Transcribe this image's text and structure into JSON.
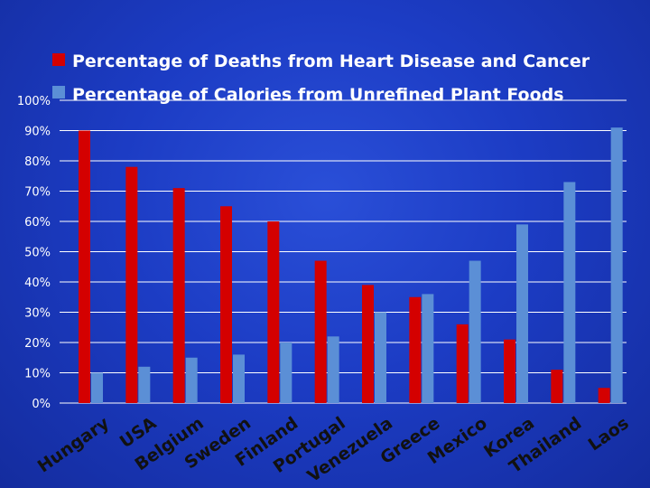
{
  "chart_data": {
    "type": "bar",
    "categories": [
      "Hungary",
      "USA",
      "Belgium",
      "Sweden",
      "Finland",
      "Portugal",
      "Venezuela",
      "Greece",
      "Mexico",
      "Korea",
      "Thailand",
      "Laos"
    ],
    "series": [
      {
        "name": "Percentage of Deaths from Heart Disease and Cancer",
        "color": "#d40000",
        "values": [
          90,
          78,
          71,
          65,
          60,
          47,
          39,
          35,
          26,
          21,
          11,
          5
        ]
      },
      {
        "name": "Percentage of Calories from Unrefined Plant Foods",
        "color": "#5b8fd6",
        "values": [
          10,
          12,
          15,
          16,
          20,
          22,
          30,
          36,
          47,
          59,
          73,
          91
        ]
      }
    ],
    "ylim": [
      0,
      100
    ],
    "yticks": [
      "0%",
      "10%",
      "20%",
      "30%",
      "40%",
      "50%",
      "60%",
      "70%",
      "80%",
      "90%",
      "100%"
    ],
    "grid": true,
    "legend_position": "top"
  }
}
